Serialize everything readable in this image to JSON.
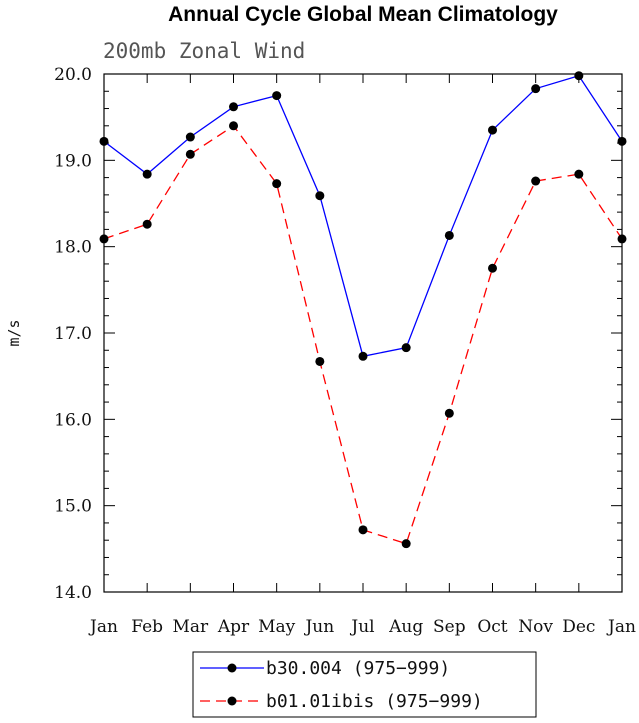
{
  "chart_data": {
    "type": "line",
    "title": "Annual Cycle Global Mean Climatology",
    "subtitle": "200mb Zonal Wind",
    "ylabel": "m/s",
    "xlabel": "",
    "categories": [
      "Jan",
      "Feb",
      "Mar",
      "Apr",
      "May",
      "Jun",
      "Jul",
      "Aug",
      "Sep",
      "Oct",
      "Nov",
      "Dec",
      "Jan"
    ],
    "ylim": [
      14.0,
      20.0
    ],
    "yticks": [
      "14.0",
      "15.0",
      "16.0",
      "17.0",
      "18.0",
      "19.0",
      "20.0"
    ],
    "grid": false,
    "legend_position": "bottom",
    "series": [
      {
        "name": "b30.004 (975-999)",
        "color": "#0000ff",
        "line_style": "solid",
        "values": [
          19.22,
          18.84,
          19.27,
          19.62,
          19.75,
          18.59,
          16.73,
          16.83,
          18.13,
          19.35,
          19.83,
          19.98,
          19.22
        ]
      },
      {
        "name": "b01.01ibis (975-999)",
        "color": "#ff0000",
        "line_style": "dashed",
        "values": [
          18.09,
          18.26,
          19.07,
          19.4,
          18.73,
          16.67,
          14.72,
          14.56,
          16.07,
          17.75,
          18.76,
          18.84,
          18.09
        ]
      }
    ]
  }
}
